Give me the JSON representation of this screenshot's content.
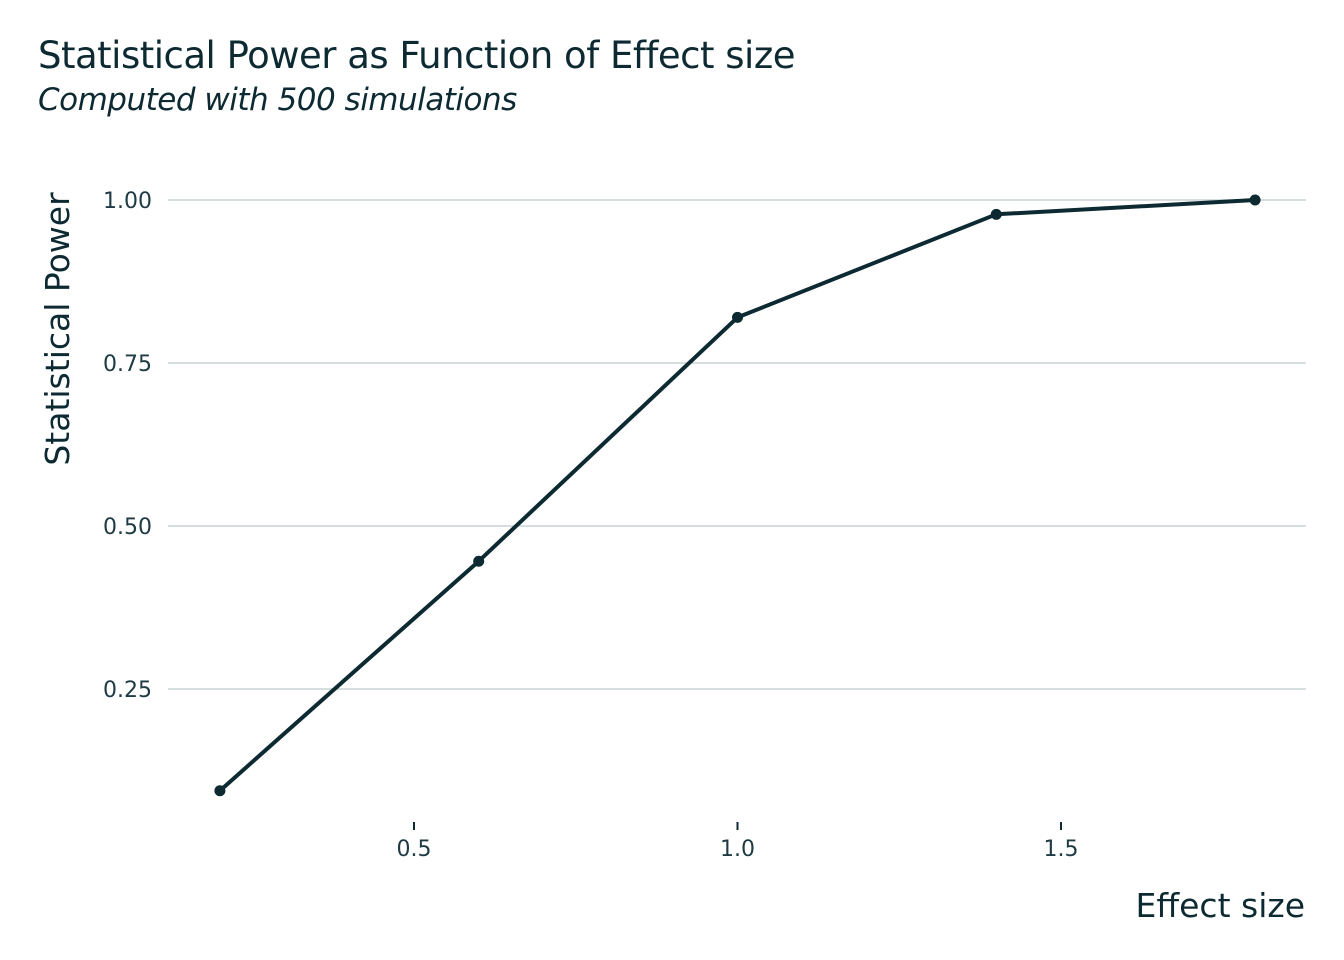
{
  "chart_data": {
    "type": "line",
    "title": "Statistical Power as Function of Effect size",
    "subtitle": "Computed with 500 simulations",
    "xlabel": "Effect size",
    "ylabel": "Statistical Power",
    "x": [
      0.2,
      0.6,
      1.0,
      1.4,
      1.8
    ],
    "series": [
      {
        "values": [
          0.094,
          0.446,
          0.82,
          0.978,
          1.0
        ]
      }
    ],
    "xlim": [
      0.07,
      1.88
    ],
    "ylim": [
      0.06,
      1.04
    ],
    "x_ticks": [
      0.5,
      1.0,
      1.5
    ],
    "x_tick_labels": [
      "0.5",
      "1.0",
      "1.5"
    ],
    "y_ticks": [
      0.25,
      0.5,
      0.75,
      1.0
    ],
    "y_tick_labels": [
      "0.25",
      "0.50",
      "0.75",
      "1.00"
    ],
    "grid": "horizontal major",
    "legend": "none",
    "colors": {
      "line": "#0d2a33",
      "grid": "#c8d3d5",
      "text": "#0d2a33"
    }
  }
}
